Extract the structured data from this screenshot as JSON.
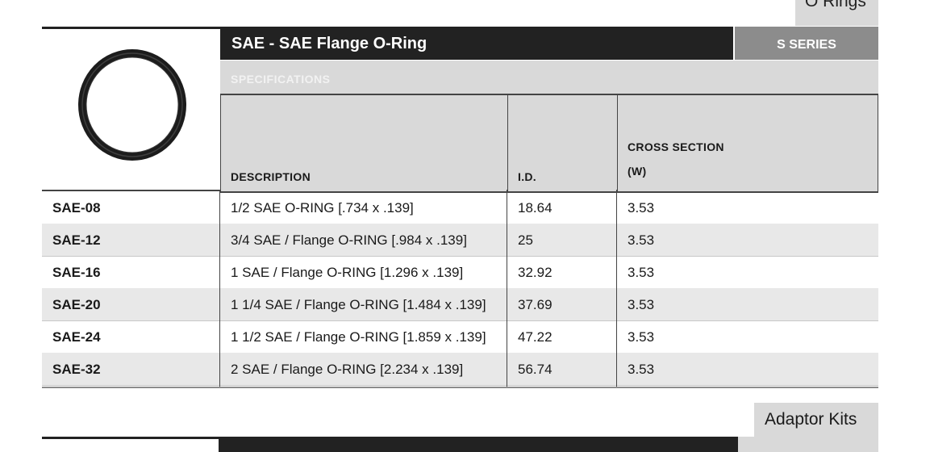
{
  "section_tab": "O Rings",
  "product": {
    "title": "SAE - SAE Flange O-Ring",
    "series": "S SERIES",
    "specifications_label": "SPECIFICATIONS",
    "image_icon": "o-ring-icon"
  },
  "table": {
    "headers": {
      "description": "DESCRIPTION",
      "id": "I.D.",
      "cross_section_line1": "CROSS SECTION",
      "cross_section_line2": "(W)"
    },
    "rows": [
      {
        "code": "SAE-08",
        "description": "1/2 SAE O-RING [.734 x .139]",
        "id": "18.64",
        "w": "3.53"
      },
      {
        "code": "SAE-12",
        "description": "3/4 SAE / Flange O-RING [.984 x .139]",
        "id": "25",
        "w": "3.53"
      },
      {
        "code": "SAE-16",
        "description": "1 SAE / Flange O-RING [1.296 x .139]",
        "id": "32.92",
        "w": "3.53"
      },
      {
        "code": "SAE-20",
        "description": "1 1/4 SAE / Flange O-RING [1.484 x .139]",
        "id": "37.69",
        "w": "3.53"
      },
      {
        "code": "SAE-24",
        "description": "1 1/2 SAE / Flange O-RING [1.859 x .139]",
        "id": "47.22",
        "w": "3.53"
      },
      {
        "code": "SAE-32",
        "description": "2 SAE / Flange O-RING [2.234 x .139]",
        "id": "56.74",
        "w": "3.53"
      }
    ]
  },
  "next_section_tab": "Adaptor Kits"
}
